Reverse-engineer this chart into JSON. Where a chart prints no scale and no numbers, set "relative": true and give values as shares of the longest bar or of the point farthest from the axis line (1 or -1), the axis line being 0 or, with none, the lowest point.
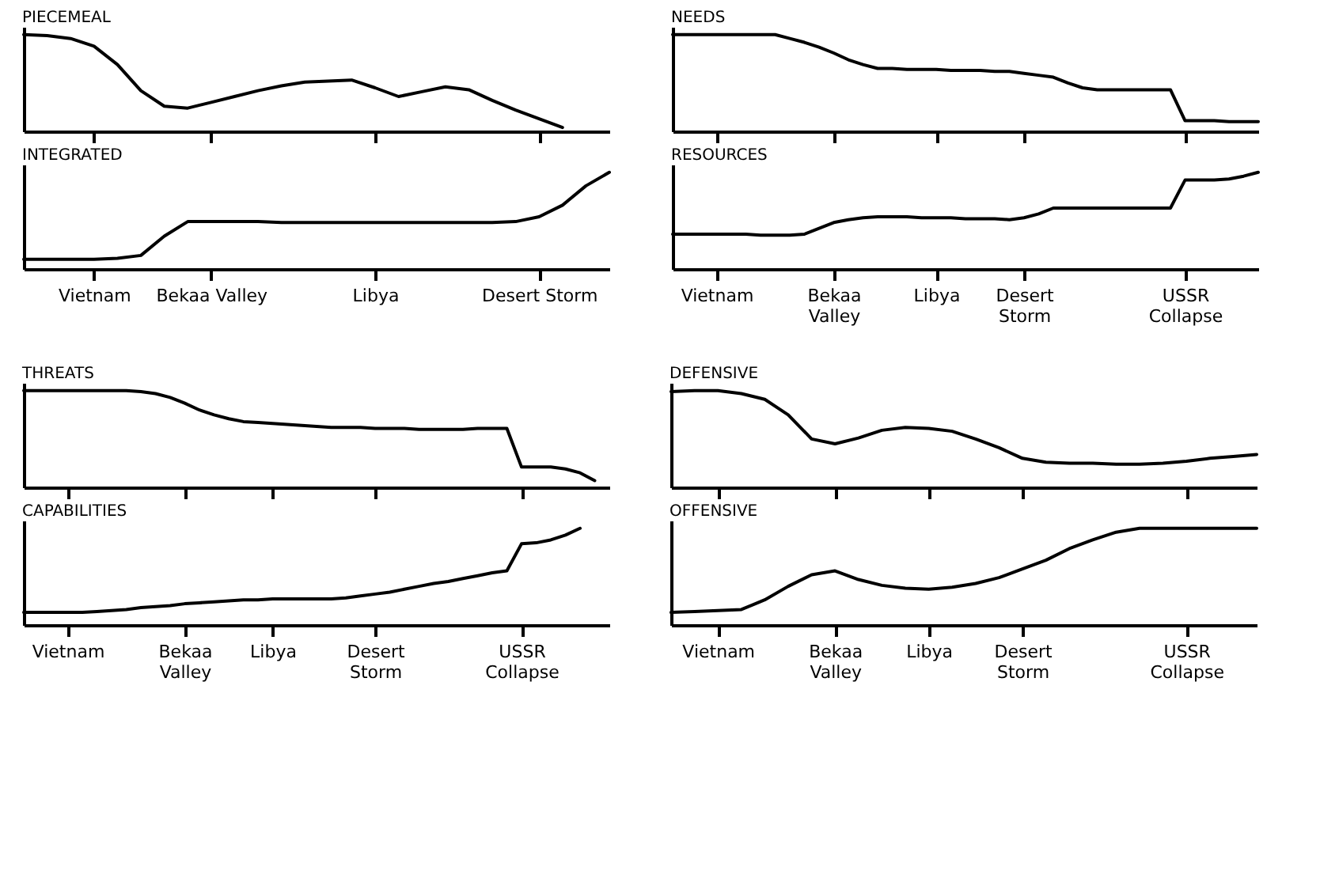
{
  "chart_data": [
    {
      "type": "line",
      "title": "PIECEMEAL",
      "relative": true,
      "color": "#000000",
      "tick_labels": false,
      "grid": false,
      "categories": [
        null,
        null,
        null,
        null,
        null,
        null,
        null,
        null,
        null,
        null,
        null,
        null,
        null,
        null,
        null,
        null,
        null,
        null,
        null,
        null,
        null,
        null,
        null,
        null,
        null,
        null
      ],
      "values": [
        1.0,
        0.99,
        0.96,
        0.88,
        0.69,
        0.42,
        0.26,
        0.24,
        0.3,
        0.36,
        0.42,
        0.47,
        0.51,
        0.52,
        0.53,
        0.45,
        0.36,
        0.41,
        0.46,
        0.43,
        0.32,
        0.22,
        0.13,
        0.04,
        null,
        null
      ]
    },
    {
      "type": "line",
      "title": "INTEGRATED",
      "relative": true,
      "color": "#000000",
      "tick_labels": "x",
      "grid": false,
      "categories": [
        null,
        null,
        null,
        "Vietnam",
        null,
        null,
        null,
        null,
        "Bekaa Valley",
        null,
        null,
        null,
        null,
        null,
        null,
        "Libya",
        null,
        null,
        null,
        null,
        null,
        null,
        "Desert Storm",
        null,
        null,
        null
      ],
      "values": [
        0.1,
        0.1,
        0.1,
        0.1,
        0.11,
        0.14,
        0.34,
        0.49,
        0.49,
        0.49,
        0.49,
        0.48,
        0.48,
        0.48,
        0.48,
        0.48,
        0.48,
        0.48,
        0.48,
        0.48,
        0.48,
        0.49,
        0.54,
        0.66,
        0.86,
        1.0
      ]
    },
    {
      "type": "line",
      "title": "NEEDS",
      "relative": true,
      "color": "#000000",
      "tick_labels": false,
      "grid": false,
      "categories": [
        null,
        null,
        null,
        null,
        null,
        null,
        null,
        null,
        null,
        null,
        null,
        null,
        null,
        null,
        null,
        null,
        null,
        null,
        null,
        null,
        null,
        null,
        null,
        null,
        null,
        null,
        null,
        null,
        null,
        null,
        null,
        null,
        null,
        null,
        null,
        null,
        null,
        null,
        null,
        null,
        null
      ],
      "values": [
        1.0,
        1.0,
        1.0,
        1.0,
        1.0,
        1.0,
        1.0,
        1.0,
        0.96,
        0.92,
        0.87,
        0.81,
        0.74,
        0.69,
        0.65,
        0.65,
        0.64,
        0.64,
        0.64,
        0.63,
        0.63,
        0.63,
        0.62,
        0.62,
        0.6,
        0.58,
        0.56,
        0.5,
        0.45,
        0.43,
        0.43,
        0.43,
        0.43,
        0.43,
        0.43,
        0.11,
        0.11,
        0.11,
        0.1,
        0.1,
        0.1
      ]
    },
    {
      "type": "line",
      "title": "RESOURCES",
      "relative": true,
      "color": "#000000",
      "tick_labels": "x",
      "grid": false,
      "categories": [
        null,
        null,
        null,
        "Vietnam",
        null,
        null,
        null,
        null,
        null,
        null,
        null,
        "Bekaa\nValley",
        null,
        null,
        null,
        null,
        null,
        null,
        "Libya",
        null,
        null,
        null,
        null,
        null,
        "Desert\nStorm",
        null,
        null,
        null,
        null,
        null,
        null,
        null,
        null,
        null,
        null,
        "USSR\nCollapse",
        null,
        null,
        null,
        null,
        null
      ],
      "values": [
        0.36,
        0.36,
        0.36,
        0.36,
        0.36,
        0.36,
        0.35,
        0.35,
        0.35,
        0.36,
        0.42,
        0.48,
        0.51,
        0.53,
        0.54,
        0.54,
        0.54,
        0.53,
        0.53,
        0.53,
        0.52,
        0.52,
        0.52,
        0.51,
        0.53,
        0.57,
        0.63,
        0.63,
        0.63,
        0.63,
        0.63,
        0.63,
        0.63,
        0.63,
        0.63,
        0.92,
        0.92,
        0.92,
        0.93,
        0.96,
        1.0
      ]
    },
    {
      "type": "line",
      "title": "THREATS",
      "relative": true,
      "color": "#000000",
      "tick_labels": false,
      "grid": false,
      "categories": [
        null,
        null,
        null,
        null,
        null,
        null,
        null,
        null,
        null,
        null,
        null,
        null,
        null,
        null,
        null,
        null,
        null,
        null,
        null,
        null,
        null,
        null,
        null,
        null,
        null,
        null,
        null,
        null,
        null,
        null,
        null,
        null,
        null,
        null,
        null,
        null,
        null,
        null,
        null,
        null,
        null
      ],
      "values": [
        1.0,
        1.0,
        1.0,
        1.0,
        1.0,
        1.0,
        1.0,
        1.0,
        0.99,
        0.97,
        0.93,
        0.87,
        0.8,
        0.75,
        0.71,
        0.68,
        0.67,
        0.66,
        0.65,
        0.64,
        0.63,
        0.62,
        0.62,
        0.62,
        0.61,
        0.61,
        0.61,
        0.6,
        0.6,
        0.6,
        0.6,
        0.61,
        0.61,
        0.61,
        0.21,
        0.21,
        0.21,
        0.19,
        0.15,
        0.07,
        null
      ]
    },
    {
      "type": "line",
      "title": "CAPABILITIES",
      "relative": true,
      "color": "#000000",
      "tick_labels": "x",
      "grid": false,
      "categories": [
        null,
        null,
        null,
        "Vietnam",
        null,
        null,
        null,
        null,
        null,
        null,
        null,
        "Bekaa\nValley",
        null,
        null,
        null,
        null,
        null,
        "Libya",
        null,
        null,
        null,
        null,
        null,
        null,
        "Desert\nStorm",
        null,
        null,
        null,
        null,
        null,
        null,
        null,
        null,
        null,
        "USSR\nCollapse",
        null,
        null,
        null,
        null,
        null,
        null
      ],
      "values": [
        0.13,
        0.13,
        0.13,
        0.13,
        0.13,
        0.14,
        0.15,
        0.16,
        0.18,
        0.19,
        0.2,
        0.22,
        0.23,
        0.24,
        0.25,
        0.26,
        0.26,
        0.27,
        0.27,
        0.27,
        0.27,
        0.27,
        0.28,
        0.3,
        0.32,
        0.34,
        0.37,
        0.4,
        0.43,
        0.45,
        0.48,
        0.51,
        0.54,
        0.56,
        0.84,
        0.85,
        0.88,
        0.93,
        1.0,
        null,
        null
      ]
    },
    {
      "type": "line",
      "title": "DEFENSIVE",
      "relative": true,
      "color": "#000000",
      "tick_labels": false,
      "grid": false,
      "categories": [
        null,
        null,
        null,
        null,
        null,
        null,
        null,
        null,
        null,
        null,
        null,
        null,
        null,
        null,
        null,
        null,
        null,
        null,
        null,
        null,
        null,
        null,
        null,
        null,
        null,
        null
      ],
      "values": [
        0.99,
        1.0,
        1.0,
        0.97,
        0.91,
        0.75,
        0.5,
        0.45,
        0.51,
        0.59,
        0.62,
        0.61,
        0.58,
        0.5,
        0.41,
        0.3,
        0.26,
        0.25,
        0.25,
        0.24,
        0.24,
        0.25,
        0.27,
        0.3,
        0.32,
        0.34
      ]
    },
    {
      "type": "line",
      "title": "OFFENSIVE",
      "relative": true,
      "color": "#000000",
      "tick_labels": "x",
      "grid": false,
      "categories": [
        null,
        null,
        "Vietnam",
        null,
        null,
        null,
        null,
        "Bekaa\nValley",
        null,
        null,
        null,
        "Libya",
        null,
        null,
        null,
        "Desert\nStorm",
        null,
        null,
        null,
        null,
        null,
        null,
        "USSR\nCollapse",
        null,
        null,
        null
      ],
      "values": [
        0.13,
        0.14,
        0.15,
        0.16,
        0.26,
        0.4,
        0.52,
        0.56,
        0.47,
        0.41,
        0.38,
        0.37,
        0.39,
        0.43,
        0.49,
        0.58,
        0.67,
        0.79,
        0.88,
        0.96,
        1.0,
        1.0,
        1.0,
        1.0,
        1.0,
        1.0
      ]
    }
  ]
}
